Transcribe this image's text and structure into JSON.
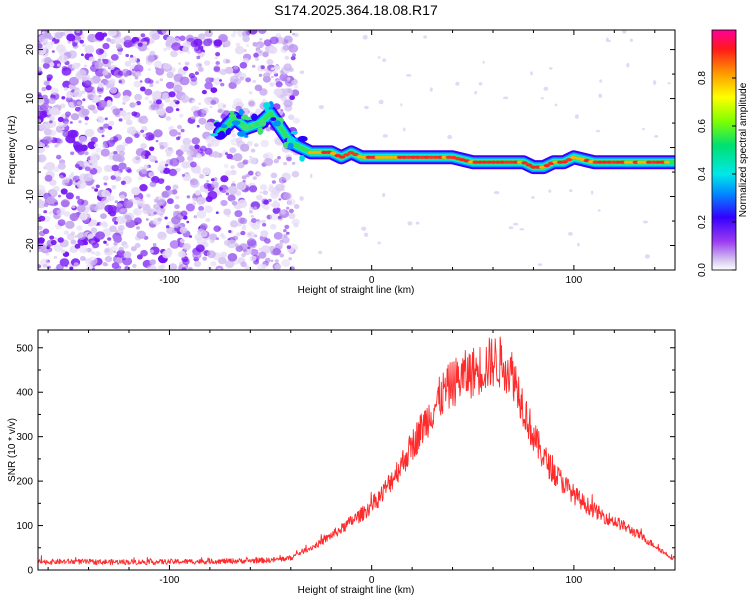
{
  "title": "S174.2025.364.18.08.R17",
  "chart_data": [
    {
      "type": "heatmap",
      "xlabel": "Height of straight line (km)",
      "ylabel": "Frequency (Hz)",
      "xlim": [
        -165,
        150
      ],
      "ylim": [
        -25,
        24
      ],
      "xticks": [
        -100,
        0,
        100
      ],
      "yticks": [
        -20,
        -10,
        0,
        10,
        20
      ],
      "ridge": {
        "description": "dominant frequency track (Hz) vs height (km)",
        "x": [
          -75,
          -68,
          -62,
          -55,
          -50,
          -45,
          -40,
          -35,
          -30,
          -20,
          -15,
          -10,
          -5,
          0,
          10,
          20,
          30,
          40,
          50,
          60,
          70,
          75,
          80,
          85,
          90,
          95,
          100,
          110,
          120,
          130,
          140,
          150
        ],
        "y": [
          3,
          6,
          4,
          5,
          7,
          4,
          1,
          0,
          -1,
          -1,
          -2,
          -1,
          -2,
          -2,
          -2,
          -2,
          -2,
          -2,
          -3,
          -3,
          -3,
          -3,
          -4,
          -4,
          -3,
          -3,
          -2,
          -3,
          -3,
          -3,
          -3,
          -3
        ]
      },
      "colorbar": {
        "label": "Normalized spectral amplitude",
        "ticks": [
          0.0,
          0.2,
          0.4,
          0.6,
          0.8
        ],
        "range": [
          0,
          1
        ]
      }
    },
    {
      "type": "line",
      "xlabel": "Height of straight line (km)",
      "ylabel": "SNR (10 * v/v)",
      "xlim": [
        -165,
        150
      ],
      "ylim": [
        0,
        540
      ],
      "xticks": [
        -100,
        0,
        100
      ],
      "yticks": [
        0,
        100,
        200,
        300,
        400,
        500
      ],
      "series": [
        {
          "name": "SNR",
          "color": "#ff2a2a",
          "x": [
            -165,
            -150,
            -130,
            -110,
            -90,
            -70,
            -50,
            -40,
            -35,
            -30,
            -25,
            -20,
            -15,
            -10,
            -5,
            0,
            5,
            10,
            15,
            20,
            25,
            30,
            35,
            40,
            45,
            50,
            55,
            60,
            65,
            70,
            75,
            80,
            85,
            90,
            95,
            100,
            105,
            110,
            115,
            120,
            125,
            130,
            135,
            140,
            145,
            150
          ],
          "y": [
            18,
            19,
            18,
            18,
            19,
            20,
            22,
            27,
            40,
            50,
            62,
            78,
            92,
            110,
            125,
            145,
            170,
            205,
            240,
            280,
            320,
            360,
            395,
            420,
            435,
            445,
            455,
            470,
            465,
            440,
            370,
            300,
            255,
            220,
            195,
            170,
            150,
            135,
            120,
            110,
            98,
            85,
            70,
            55,
            38,
            25
          ]
        }
      ]
    }
  ]
}
